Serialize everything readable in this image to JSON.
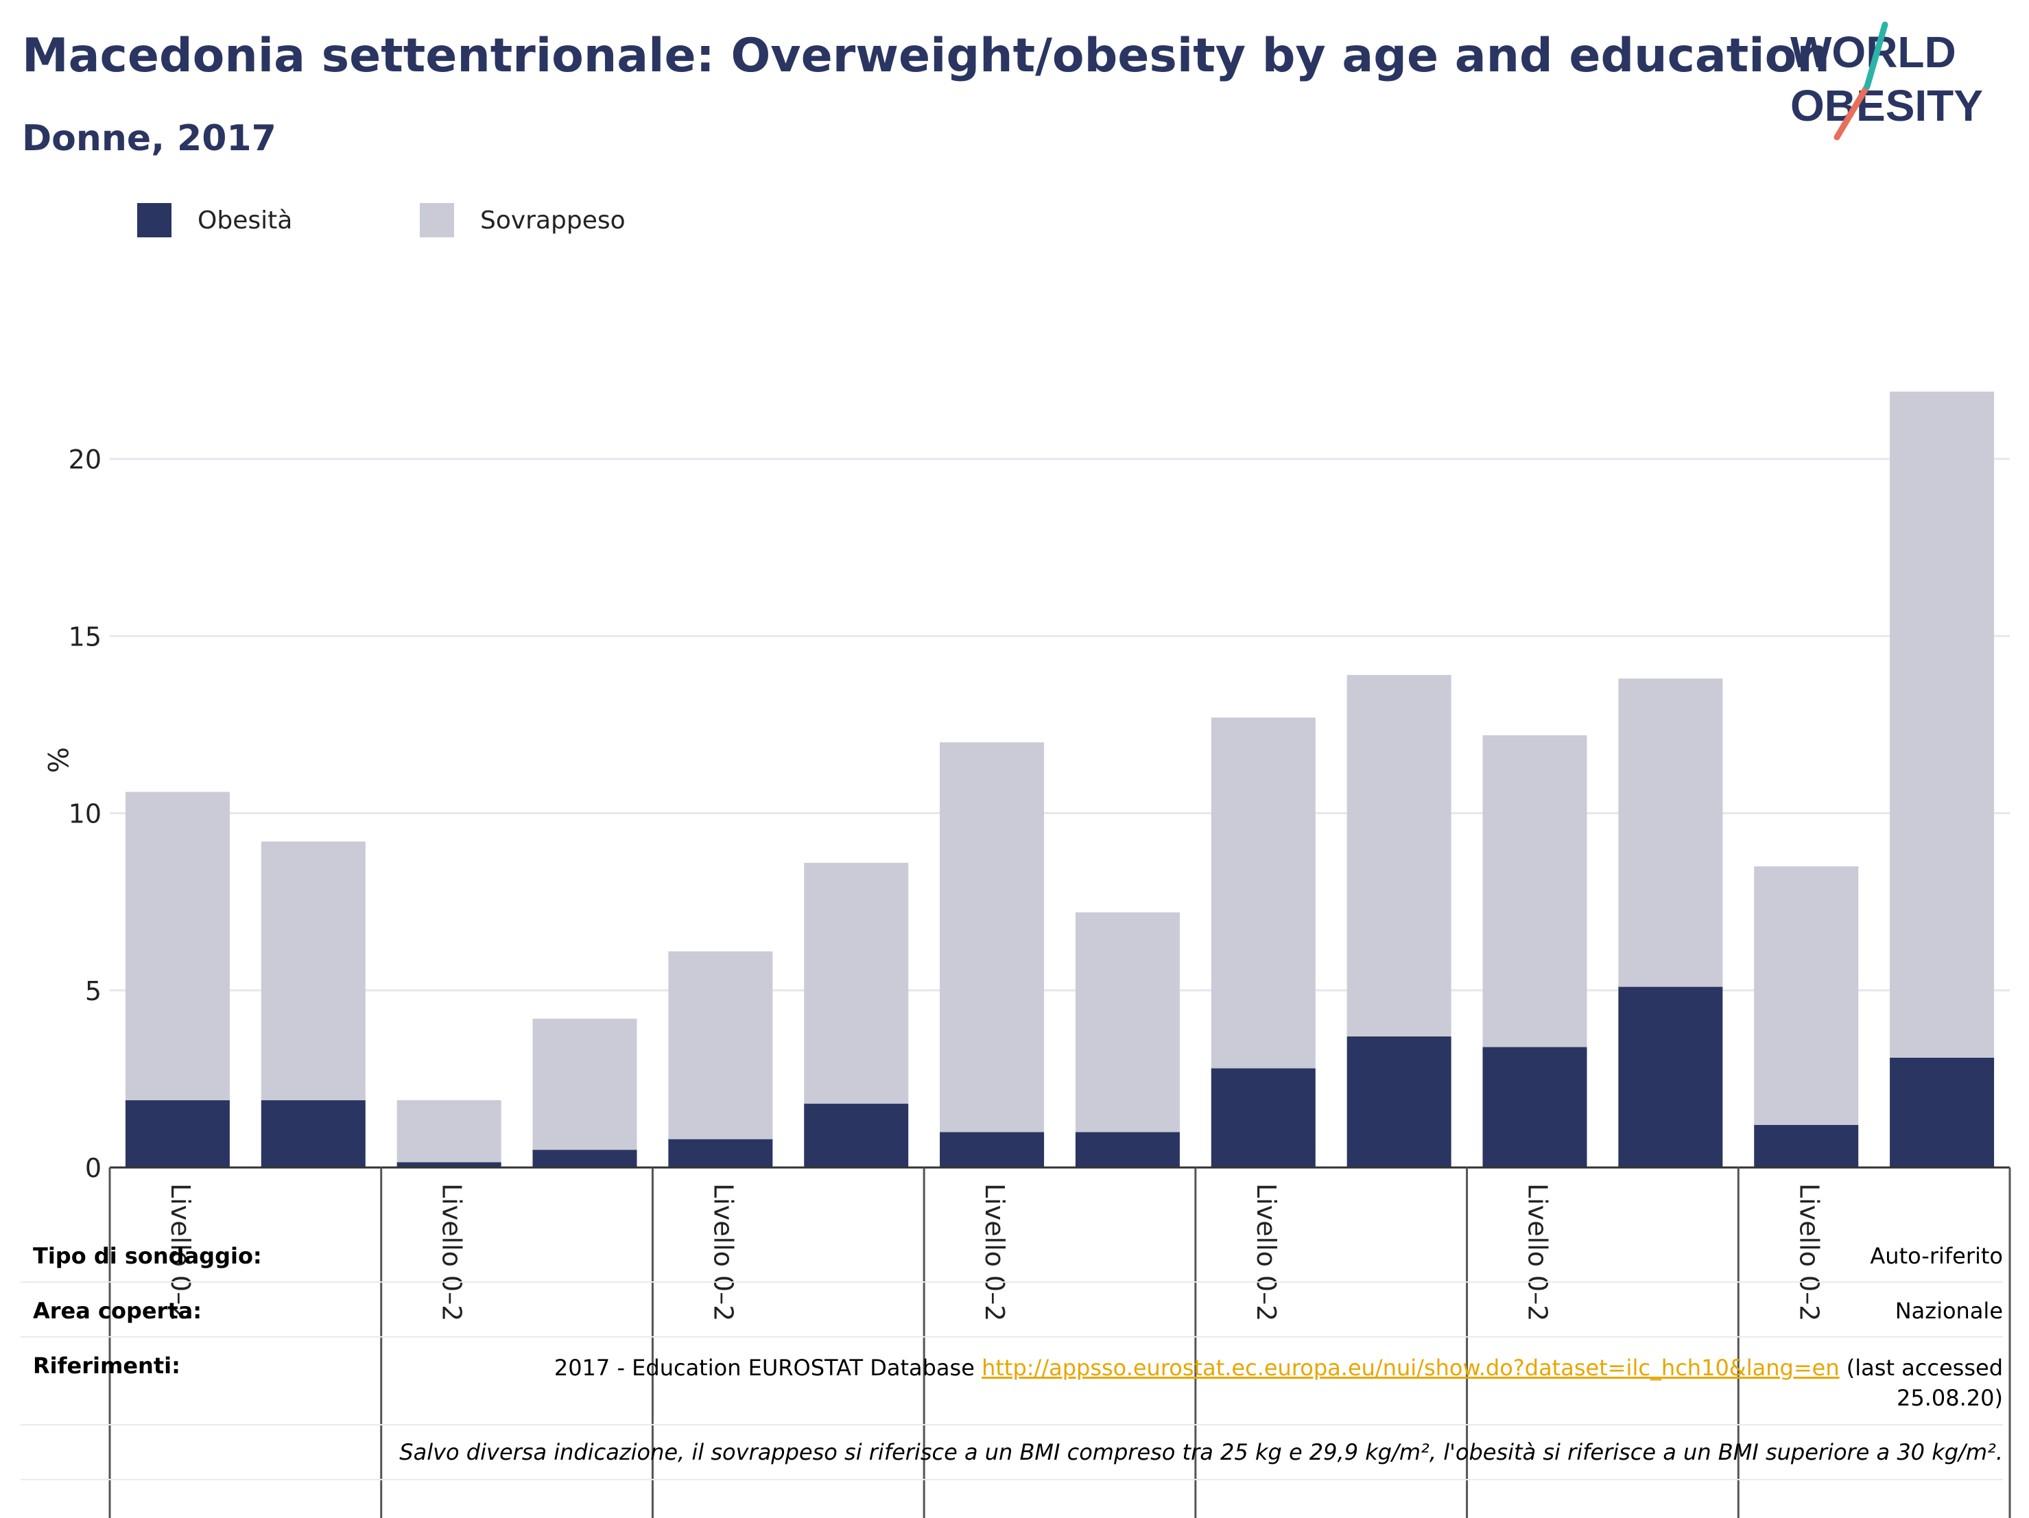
{
  "header": {
    "title": "Macedonia settentrionale: Overweight/obesity by age and education",
    "subtitle": "Donne, 2017"
  },
  "logo": {
    "line1": "WORLD",
    "line2": "OBESITY",
    "accent_teal": "#2bb3a7",
    "accent_coral": "#e8705a"
  },
  "colors": {
    "obesity": "#2a3561",
    "overweight": "#cacbd7",
    "grid": "#e6e7ee",
    "text": "#2a3561"
  },
  "legend": [
    {
      "label": "Obesità",
      "color": "#2a3561"
    },
    {
      "label": "Sovrappeso",
      "color": "#cacbd7"
    }
  ],
  "chart_data": {
    "type": "bar",
    "stacked": true,
    "ylabel": "%",
    "ylim": [
      0,
      22
    ],
    "yticks": [
      0,
      5,
      10,
      15,
      20
    ],
    "grid": true,
    "categories": [
      "",
      "",
      "",
      "",
      "",
      "",
      "",
      "",
      "",
      "",
      "",
      "",
      "",
      ""
    ],
    "group_labels": [
      "Livello 0–2",
      "Livello 0–2",
      "Livello 0–2",
      "Livello 0–2",
      "Livello 0–2",
      "Livello 0–2",
      "Livello 0–2"
    ],
    "series": [
      {
        "name": "Obesità",
        "values": [
          1.9,
          1.9,
          0.15,
          0.5,
          0.8,
          1.8,
          1.0,
          1.0,
          2.8,
          3.7,
          3.4,
          5.1,
          1.2,
          3.1
        ]
      },
      {
        "name": "Sovrappeso",
        "values": [
          8.7,
          7.3,
          1.75,
          3.7,
          5.3,
          6.8,
          11.0,
          6.2,
          9.9,
          10.2,
          8.8,
          8.7,
          7.3,
          18.8
        ]
      }
    ]
  },
  "notes": {
    "survey_key": "Tipo di sondaggio:",
    "survey_val": "Auto-riferito",
    "area_key": "Area coperta:",
    "area_val": "Nazionale",
    "ref_key": "Riferimenti:",
    "ref_prefix": "2017 - Education EUROSTAT Database",
    "ref_link": "http://appsso.eurostat.ec.europa.eu/nui/show.do?dataset=ilc_hch10&lang=en",
    "ref_suffix": "(last accessed",
    "ref_date": "25.08.20)",
    "footnote": "Salvo diversa indicazione, il sovrappeso si riferisce a un BMI compreso tra 25 kg e 29,9 kg/m², l'obesità si riferisce a un BMI superiore a 30 kg/m²."
  }
}
